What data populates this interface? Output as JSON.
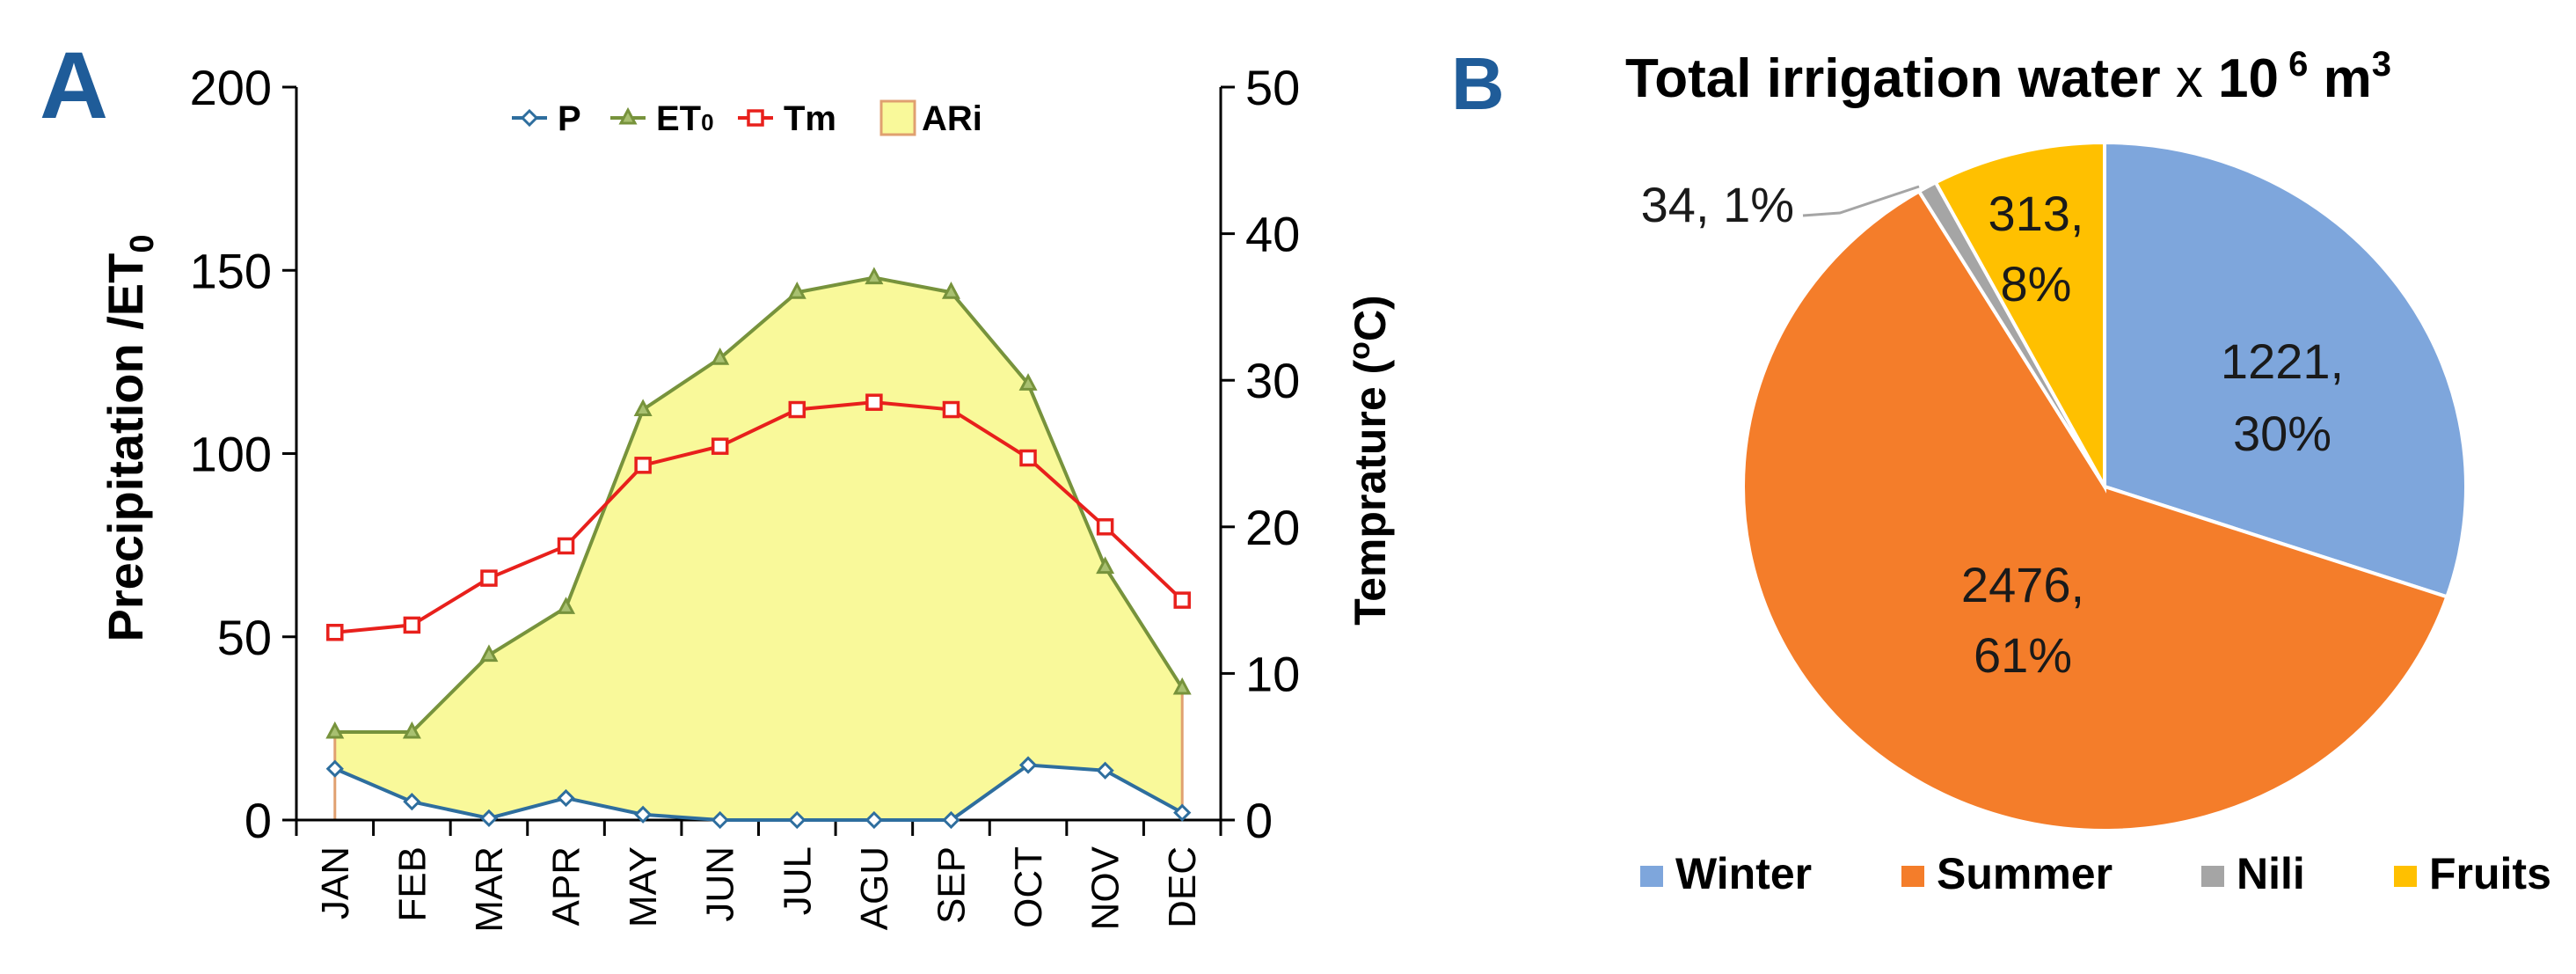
{
  "panels": {
    "a_label": "A",
    "b_label": "B"
  },
  "chart_data": [
    {
      "type": "line",
      "categories": [
        "JAN",
        "FEB",
        "MAR",
        "APR",
        "MAY",
        "JUN",
        "JUL",
        "AGU",
        "SEP",
        "OCT",
        "NOV",
        "DEC"
      ],
      "ylabel_main": "Precipitation  /ET",
      "ylabel_sub": "0",
      "y2label_main": "Temprature (",
      "y2label_sup": "o",
      "y2label_end": "C)",
      "ylim": [
        0,
        200
      ],
      "y2lim": [
        0,
        50
      ],
      "yticks": [
        "0",
        "50",
        "100",
        "150",
        "200"
      ],
      "y2ticks": [
        "0",
        "10",
        "20",
        "30",
        "40",
        "50"
      ],
      "legend_position": "top-center",
      "series": [
        {
          "name": "P",
          "axis": "left",
          "marker": "diamond",
          "color": "#2e6e9e",
          "values": [
            14,
            5,
            0.5,
            6,
            1.5,
            0,
            0,
            0,
            0,
            15,
            13.5,
            2
          ]
        },
        {
          "name": "ET",
          "name_sub": "0",
          "axis": "left",
          "marker": "triangle",
          "color": "#77933c",
          "values": [
            24,
            24,
            45,
            58,
            112,
            126,
            144,
            148,
            144,
            119,
            69,
            36
          ]
        },
        {
          "name": "Tm",
          "axis": "right",
          "marker": "square",
          "color": "#e8201c",
          "values": [
            12.8,
            13.3,
            16.5,
            18.7,
            24.2,
            25.5,
            28,
            28.5,
            28,
            24.7,
            20,
            15
          ]
        },
        {
          "name": "ARi",
          "type": "area",
          "fill": "#f9f99a",
          "edge": "#e0a070",
          "note": "area between P and ET0"
        }
      ]
    },
    {
      "type": "pie",
      "title_main": "Total irrigation water",
      "title_x": " x ",
      "title_ten": "10",
      "title_exp": " 6",
      "title_unit": " m",
      "title_unit_exp": "3",
      "legend_position": "bottom",
      "slices": [
        {
          "name": "Winter",
          "value": 1221,
          "percent": 30,
          "label_value": "1221,",
          "label_pct": "30%",
          "color": "#7ea6dc"
        },
        {
          "name": "Summer",
          "value": 2476,
          "percent": 61,
          "label_value": "2476,",
          "label_pct": "61%",
          "color": "#f47d2a"
        },
        {
          "name": "Nili",
          "value": 34,
          "percent": 1,
          "label_value": "34, 1%",
          "label_pct": "",
          "color": "#a5a5a5"
        },
        {
          "name": "Fruits",
          "value": 313,
          "percent": 8,
          "label_value": "313,",
          "label_pct": "8%",
          "color": "#ffc000"
        }
      ]
    }
  ]
}
